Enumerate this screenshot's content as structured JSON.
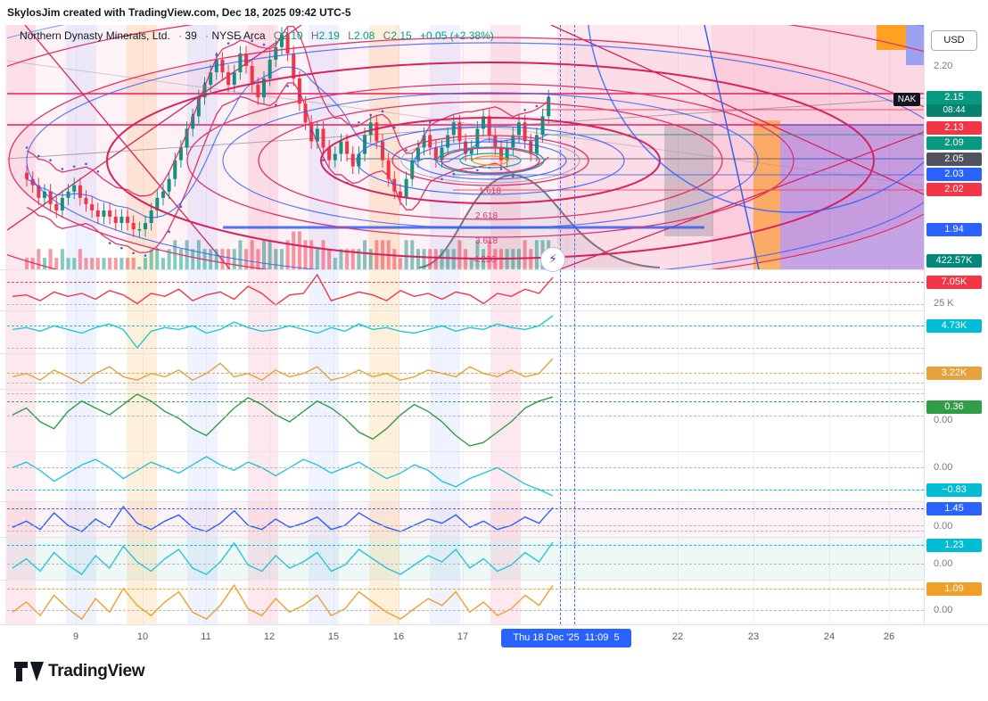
{
  "attribution": "SkylosJim created with TradingView.com, Dec 18, 2025 09:42 UTC-5",
  "symbol": {
    "name": "Northern Dynasty Minerals, Ltd.",
    "sep": "·",
    "interval": "39",
    "exchange": "NYSE Arca",
    "o_label": "O",
    "o": "2.10",
    "h_label": "H",
    "h": "2.19",
    "l_label": "L",
    "l": "2.08",
    "c_label": "C",
    "c": "2.15",
    "change": "+0.05 (+2.38%)"
  },
  "price_scale": {
    "currency": "USD",
    "tick_top": "2.20",
    "volume_tick": "25 K",
    "symbol_label": "NAK",
    "last": {
      "price": "2.15",
      "countdown": "08:44",
      "color": "#089981"
    },
    "levels": [
      {
        "value": "2.13",
        "color": "#f23645"
      },
      {
        "value": "2.09",
        "color": "#089981"
      },
      {
        "value": "2.05",
        "color": "#50535e"
      },
      {
        "value": "2.03",
        "color": "#2962ff"
      },
      {
        "value": "2.02",
        "color": "#f23645"
      },
      {
        "value": "1.94",
        "color": "#2962ff"
      },
      {
        "value": "422.57K",
        "color": "#00897b"
      }
    ],
    "zero": "0.00"
  },
  "fib": {
    "labels": [
      "1.618",
      "2.618",
      "3.618",
      "4.236"
    ]
  },
  "panes": [
    {
      "value": "7.05K",
      "color": "#f23645"
    },
    {
      "value": "4.73K",
      "color": "#00bcd4"
    },
    {
      "value": "3.22K",
      "color": "#e6a23c"
    },
    {
      "value": "0.36",
      "color": "#2f9e44"
    },
    {
      "value": "−0.83",
      "color": "#00bcd4"
    },
    {
      "value": "1.45",
      "color": "#2962ff"
    },
    {
      "value": "1.23",
      "color": "#00bcd4"
    },
    {
      "value": "1.09",
      "color": "#f0a028"
    }
  ],
  "time_axis": {
    "ticks": [
      "9",
      "10",
      "11",
      "12",
      "15",
      "16",
      "17",
      "22",
      "23",
      "24",
      "26"
    ],
    "crosshair_label": "Thu 18 Dec '25  11:09  5"
  },
  "footer": {
    "brand": "TradingView"
  },
  "chart_data": {
    "type": "candlestick",
    "symbol": "NAK",
    "title": "Northern Dynasty Minerals, Ltd.",
    "interval": "39",
    "exchange": "NYSE Arca",
    "ohlc": {
      "open": 2.1,
      "high": 2.19,
      "low": 2.08,
      "close": 2.15,
      "change": 0.05,
      "change_pct": 2.38
    },
    "price_axis": {
      "visible_ticks": [
        2.2
      ],
      "last_price": 2.15,
      "levels": [
        2.13,
        2.09,
        2.05,
        2.03,
        2.02,
        1.94
      ]
    },
    "fib_circle_levels": [
      1.618,
      2.618,
      3.618,
      4.236
    ],
    "volume_last": 422570,
    "candle_up_color": "#089981",
    "candle_down_color": "#f23645",
    "main": {
      "closes": [
        2.02,
        2.01,
        1.99,
        2.0,
        1.98,
        1.97,
        1.99,
        2.0,
        2.01,
        1.99,
        1.98,
        1.97,
        1.96,
        1.97,
        1.96,
        1.95,
        1.96,
        1.95,
        1.94,
        1.94,
        1.95,
        1.97,
        1.99,
        2.0,
        2.02,
        2.05,
        2.07,
        2.1,
        2.12,
        2.15,
        2.17,
        2.19,
        2.21,
        2.19,
        2.17,
        2.19,
        2.22,
        2.2,
        2.17,
        2.15,
        2.18,
        2.21,
        2.23,
        2.25,
        2.22,
        2.18,
        2.14,
        2.11,
        2.08,
        2.1,
        2.07,
        2.05,
        2.06,
        2.08,
        2.06,
        2.04,
        2.06,
        2.09,
        2.11,
        2.08,
        2.05,
        2.02,
        2.0,
        1.99,
        2.02,
        2.05,
        2.07,
        2.09,
        2.07,
        2.05,
        2.07,
        2.09,
        2.11,
        2.08,
        2.06,
        2.07,
        2.1,
        2.12,
        2.09,
        2.07,
        2.05,
        2.07,
        2.09,
        2.11,
        2.08,
        2.06,
        2.09,
        2.12,
        2.15
      ]
    },
    "indicators": [
      {
        "name": "osc-red",
        "color": "#f23645",
        "last": 7.05,
        "values": [
          0.5,
          1,
          -1,
          2,
          0.5,
          1.5,
          -0.5,
          2.5,
          1,
          -2,
          1.5,
          0.5,
          3,
          -1,
          1,
          2,
          -0.5,
          4,
          1.5,
          -2.5,
          1,
          1.5,
          8,
          -1,
          0.5,
          2,
          1,
          -1,
          2.5,
          0.5,
          1.5,
          -0.5,
          2,
          1,
          -2,
          1.5,
          0.5,
          3,
          1.5,
          7.05
        ]
      },
      {
        "name": "osc-cyan-a",
        "color": "#26c6da",
        "last": 4.73,
        "values": [
          1,
          1.5,
          0.5,
          2,
          1,
          0,
          1.5,
          2.5,
          1,
          -4,
          0.5,
          1.5,
          1,
          2,
          0,
          1,
          3,
          1.5,
          0.5,
          1,
          2,
          1,
          0,
          1.5,
          0.5,
          2.5,
          1,
          1.5,
          0.5,
          0,
          1,
          2,
          0.5,
          1.5,
          1,
          2.5,
          1.5,
          1,
          2,
          4.73
        ]
      },
      {
        "name": "osc-yellow",
        "color": "#e6a23c",
        "last": 3.22,
        "values": [
          0.5,
          1,
          0,
          1.5,
          0.5,
          -0.5,
          1,
          2,
          0.5,
          0,
          1,
          0.5,
          1.5,
          0,
          1,
          2.5,
          0.5,
          1,
          0,
          1.5,
          0.5,
          1,
          2,
          0,
          0.5,
          1.5,
          0.5,
          1,
          0,
          0.5,
          1.5,
          1,
          0.5,
          2,
          1,
          0.5,
          1.5,
          0.5,
          1,
          3.22
        ]
      },
      {
        "name": "wave-green",
        "color": "#2f9e44",
        "last": 0.36,
        "values": [
          0.1,
          0.2,
          0,
          -0.1,
          0.15,
          0.3,
          0.2,
          0.1,
          0.25,
          0.4,
          0.3,
          0.15,
          0.05,
          -0.1,
          -0.2,
          0,
          0.2,
          0.35,
          0.25,
          0.1,
          0,
          0.15,
          0.3,
          0.2,
          0.05,
          -0.15,
          -0.25,
          -0.1,
          0.1,
          0.25,
          0.15,
          0,
          -0.2,
          -0.35,
          -0.3,
          -0.15,
          0,
          0.2,
          0.3,
          0.36
        ]
      },
      {
        "name": "osc-cyan-b",
        "color": "#26c6da",
        "last": -0.83,
        "values": [
          0.2,
          0.4,
          0.1,
          -0.3,
          0,
          0.3,
          0.5,
          0.2,
          -0.2,
          0.1,
          0.4,
          0.2,
          0,
          0.3,
          0.6,
          0.3,
          0.1,
          0.4,
          0.2,
          -0.1,
          0.2,
          0.5,
          0.3,
          0,
          0.2,
          0.4,
          0.1,
          -0.2,
          0,
          0.3,
          0.1,
          -0.3,
          -0.5,
          -0.2,
          0,
          0.2,
          -0.1,
          -0.4,
          -0.6,
          -0.83
        ]
      },
      {
        "name": "osc-blue",
        "color": "#2962ff",
        "last": 1.45,
        "values": [
          0.5,
          0.8,
          0.4,
          1.2,
          0.6,
          0.3,
          0.9,
          0.5,
          1.5,
          0.7,
          0.4,
          0.8,
          1.1,
          0.5,
          0.3,
          0.7,
          1.3,
          0.6,
          0.4,
          0.9,
          0.5,
          0.7,
          1.0,
          0.4,
          0.6,
          1.2,
          0.8,
          0.5,
          0.3,
          0.6,
          0.9,
          0.7,
          1.1,
          0.5,
          0.8,
          0.4,
          0.6,
          1.0,
          0.7,
          1.45
        ]
      },
      {
        "name": "osc-cyan-c",
        "color": "#26c6da",
        "last": 1.23,
        "values": [
          0.4,
          0.7,
          0.3,
          0.9,
          0.5,
          0.2,
          0.8,
          0.4,
          1.1,
          0.6,
          0.3,
          0.7,
          1.0,
          0.4,
          0.2,
          0.6,
          1.2,
          0.5,
          0.3,
          0.8,
          0.4,
          0.6,
          0.9,
          0.3,
          0.5,
          1.0,
          0.7,
          0.4,
          0.2,
          0.5,
          0.8,
          0.6,
          1.0,
          0.4,
          0.7,
          0.3,
          0.5,
          0.9,
          0.6,
          1.23
        ]
      },
      {
        "name": "osc-orange",
        "color": "#f0a028",
        "last": 1.09,
        "values": [
          0.3,
          0.6,
          0.2,
          0.8,
          0.4,
          0.1,
          0.7,
          0.3,
          1.0,
          0.5,
          0.2,
          0.6,
          0.9,
          0.3,
          0.1,
          0.5,
          1.1,
          0.4,
          0.2,
          0.7,
          0.3,
          0.5,
          0.8,
          0.2,
          0.4,
          0.9,
          0.6,
          0.3,
          0.1,
          0.4,
          0.7,
          0.5,
          0.9,
          0.3,
          0.6,
          0.2,
          0.4,
          0.8,
          0.5,
          1.09
        ]
      }
    ],
    "time_axis_days": [
      "9",
      "10",
      "11",
      "12",
      "15",
      "16",
      "17",
      "18",
      "22",
      "23",
      "24",
      "26"
    ]
  }
}
